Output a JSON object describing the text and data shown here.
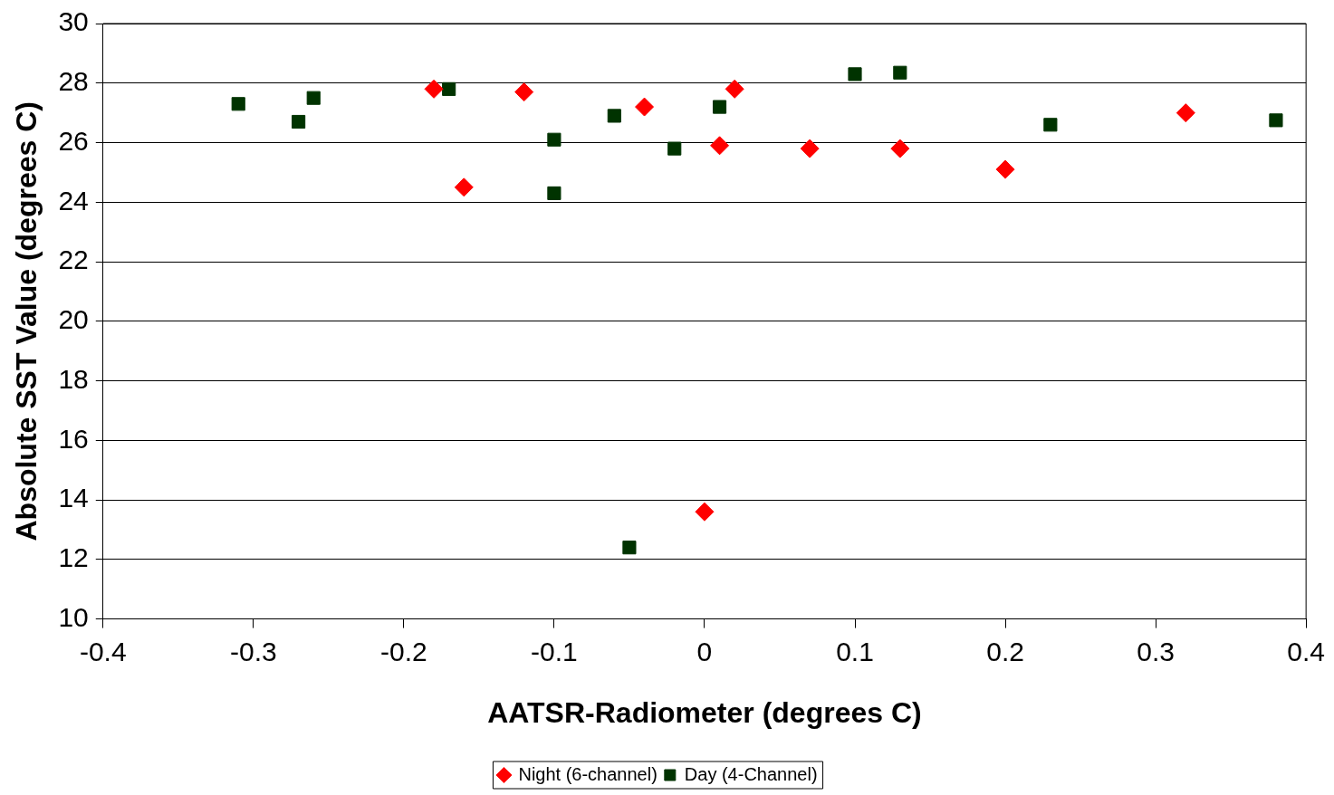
{
  "chart_data": {
    "type": "scatter",
    "xlabel": "AATSR-Radiometer (degrees C)",
    "ylabel": "Absolute SST Value (degrees C)",
    "xlim": [
      -0.4,
      0.4
    ],
    "xticks": [
      -0.4,
      -0.3,
      -0.2,
      -0.1,
      0,
      0.1,
      0.2,
      0.3,
      0.4
    ],
    "ylim": [
      10,
      30
    ],
    "yticks": [
      10,
      12,
      14,
      16,
      18,
      20,
      22,
      24,
      26,
      28,
      30
    ],
    "grid": "y",
    "legend": "bottom",
    "series": [
      {
        "name": "Night (6-channel)",
        "color": "#ff0000",
        "marker": "diamond",
        "x": [
          -0.18,
          -0.16,
          -0.12,
          -0.04,
          0.01,
          0.02,
          0.07,
          0.13,
          0.2,
          0.32,
          0
        ],
        "values": [
          27.8,
          24.5,
          27.7,
          27.2,
          25.9,
          27.8,
          25.8,
          25.8,
          25.1,
          27.0,
          13.6
        ]
      },
      {
        "name": "Day (4-Channel)",
        "color": "#003300",
        "marker": "square",
        "x": [
          -0.31,
          -0.27,
          -0.26,
          -0.17,
          -0.1,
          -0.1,
          -0.06,
          -0.02,
          0.01,
          -0.05,
          0.1,
          0.13,
          0.23,
          0.38
        ],
        "values": [
          27.3,
          26.7,
          27.5,
          27.8,
          26.1,
          24.3,
          26.9,
          25.8,
          27.2,
          12.4,
          28.3,
          28.35,
          26.6,
          26.75
        ]
      }
    ]
  }
}
